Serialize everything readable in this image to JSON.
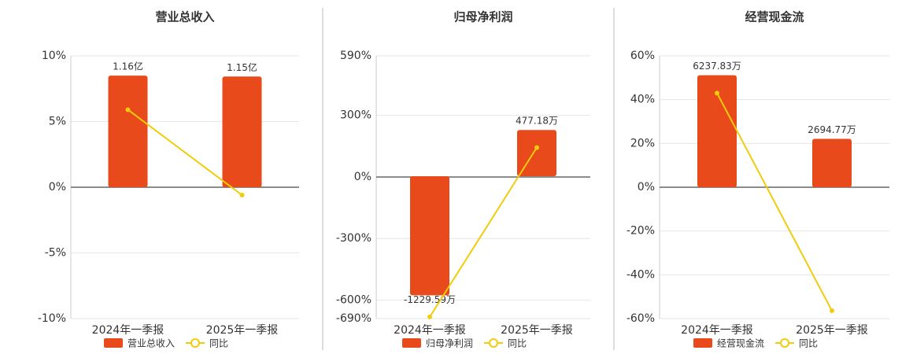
{
  "chart_data": [
    {
      "type": "bar-line",
      "title": "营业总收入",
      "categories": [
        "2024年一季报",
        "2025年一季报"
      ],
      "series": [
        {
          "name": "营业总收入",
          "color": "#e84a1b",
          "axis": "y2",
          "values": [
            1.16,
            1.15
          ],
          "value_labels": [
            "1.16亿",
            "1.15亿"
          ]
        },
        {
          "name": "同比",
          "color": "#f2cc0c",
          "values": [
            5.9,
            -0.6
          ]
        }
      ],
      "ylim": [
        -10,
        10
      ],
      "yticks": [
        {
          "value": 10,
          "label": "10%"
        },
        {
          "value": 5,
          "label": "5%"
        },
        {
          "value": 0,
          "label": "0%"
        },
        {
          "value": -5,
          "label": "-5%"
        },
        {
          "value": -10,
          "label": "-10%"
        }
      ],
      "y2lim": [
        -1.365,
        1.365
      ],
      "grid": true
    },
    {
      "type": "bar-line",
      "title": "归母净利润",
      "categories": [
        "2024年一季报",
        "2025年一季报"
      ],
      "series": [
        {
          "name": "归母净利润",
          "color": "#e84a1b",
          "axis": "y2",
          "values": [
            -1229.59,
            477.18
          ],
          "value_labels": [
            "-1229.59万",
            "477.18万"
          ]
        },
        {
          "name": "同比",
          "color": "#f2cc0c",
          "values": [
            -682,
            143
          ]
        }
      ],
      "ylim": [
        -690,
        590
      ],
      "yticks": [
        {
          "value": 590,
          "label": "590%"
        },
        {
          "value": 300,
          "label": "300%"
        },
        {
          "value": 0,
          "label": "0%"
        },
        {
          "value": -300,
          "label": "-300%"
        },
        {
          "value": -600,
          "label": "-600%"
        },
        {
          "value": -690,
          "label": "-690%"
        }
      ],
      "y2lim": [
        -1470,
        1242
      ],
      "grid": true
    },
    {
      "type": "bar-line",
      "title": "经营现金流",
      "categories": [
        "2024年一季报",
        "2025年一季报"
      ],
      "series": [
        {
          "name": "经营现金流",
          "color": "#e84a1b",
          "axis": "y2",
          "values": [
            6237.83,
            2694.77
          ],
          "value_labels": [
            "6237.83万",
            "2694.77万"
          ]
        },
        {
          "name": "同比",
          "color": "#f2cc0c",
          "values": [
            43,
            -56.4
          ]
        }
      ],
      "ylim": [
        -60,
        60
      ],
      "yticks": [
        {
          "value": 60,
          "label": "60%"
        },
        {
          "value": 40,
          "label": "40%"
        },
        {
          "value": 20,
          "label": "20%"
        },
        {
          "value": 0,
          "label": "0%"
        },
        {
          "value": -20,
          "label": "-20%"
        },
        {
          "value": -40,
          "label": "-40%"
        },
        {
          "value": -60,
          "label": "-60%"
        }
      ],
      "y2lim": [
        -7315,
        7315
      ],
      "grid": true
    }
  ]
}
